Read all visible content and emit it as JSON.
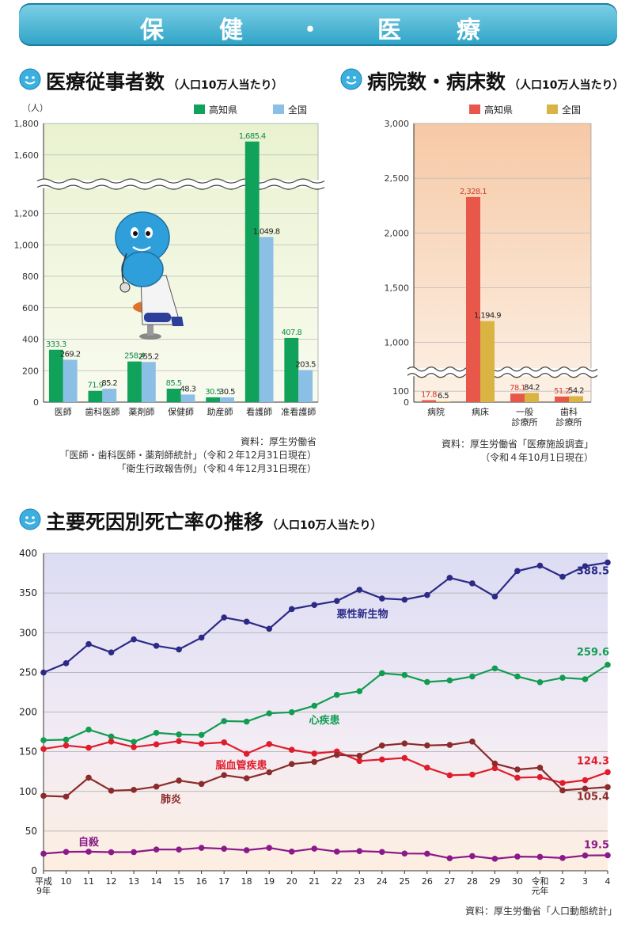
{
  "banner": {
    "title": "保　健　・　医　療"
  },
  "sections": {
    "staff": {
      "title": "医療従事者数",
      "unit": "（人口10万人当たり）"
    },
    "hospitals": {
      "title": "病院数・病床数",
      "unit": "（人口10万人当たり）"
    },
    "death": {
      "title": "主要死因別死亡率の推移",
      "unit": "（人口10万人当たり）"
    }
  },
  "sources": {
    "staff": [
      "資料：厚生労働省",
      "「医師・歯科医師・薬剤師統計」（令和２年12月31日現在）",
      "「衛生行政報告例」（令和４年12月31日現在）"
    ],
    "hospitals": [
      "資料：厚生労働省「医療施設調査」",
      "（令和４年10月1日現在）"
    ],
    "death": [
      "資料：厚生労働省「人口動態統計」"
    ]
  },
  "icons": {
    "section_marker": "smiley-face-icon",
    "mascot": "mascot-doctor-icon"
  },
  "chart_data": [
    {
      "type": "bar",
      "ylabel": "（人）",
      "categories": [
        "医師",
        "歯科医師",
        "薬剤師",
        "保健師",
        "助産師",
        "看護師",
        "准看護師"
      ],
      "series": [
        {
          "name": "高知県",
          "color": "#10a15a",
          "values": [
            333.3,
            71.9,
            258.4,
            85.5,
            30.5,
            1685.4,
            407.8
          ],
          "labels": [
            "333.3",
            "71.9",
            "258.4",
            "85.5",
            "30.5",
            "1,685.4",
            "407.8"
          ]
        },
        {
          "name": "全国",
          "color": "#8bbfe6",
          "values": [
            269.2,
            85.2,
            255.2,
            48.3,
            30.5,
            1049.8,
            203.5
          ],
          "labels": [
            "269.2",
            "85.2",
            "255.2",
            "48.3",
            "30.5",
            "1,049.8",
            "203.5"
          ]
        }
      ],
      "ylim": [
        0,
        1800
      ],
      "axis_break": [
        1300,
        1500
      ],
      "ticks": [
        0,
        200,
        400,
        600,
        800,
        1000,
        1200,
        1600,
        1800
      ],
      "tick_labels": [
        "0",
        "200",
        "400",
        "600",
        "800",
        "1,000",
        "1,200",
        "1,600",
        "1,800"
      ],
      "legend": "top-right",
      "grid": true
    },
    {
      "type": "bar",
      "categories": [
        "病院",
        "病床",
        "一般\n診療所",
        "歯科\n診療所"
      ],
      "series": [
        {
          "name": "高知県",
          "color": "#e8584a",
          "values": [
            17.8,
            2328.1,
            78.1,
            51.2
          ],
          "labels": [
            "17.8",
            "2,328.1",
            "78.1",
            "51.2"
          ]
        },
        {
          "name": "全国",
          "color": "#d9b443",
          "values": [
            6.5,
            1194.9,
            84.2,
            54.2
          ],
          "labels": [
            "6.5",
            "1,194.9",
            "84.2",
            "54.2"
          ]
        }
      ],
      "ylim": [
        0,
        3000
      ],
      "axis_break": [
        150,
        850
      ],
      "ticks": [
        0,
        100,
        1000,
        1500,
        2000,
        2500,
        3000
      ],
      "tick_labels": [
        "0",
        "100",
        "1,000",
        "1,500",
        "2,000",
        "2,500",
        "3,000"
      ],
      "legend": "top-right",
      "grid": true
    },
    {
      "type": "line",
      "x": [
        "平成\n9年",
        "10",
        "11",
        "12",
        "13",
        "14",
        "15",
        "16",
        "17",
        "18",
        "19",
        "20",
        "21",
        "22",
        "23",
        "24",
        "25",
        "26",
        "27",
        "28",
        "29",
        "30",
        "令和\n元年",
        "2",
        "3",
        "4"
      ],
      "ylim": [
        0,
        400
      ],
      "ticks": [
        0,
        50,
        100,
        150,
        200,
        250,
        300,
        350,
        400
      ],
      "grid": true,
      "series": [
        {
          "name": "悪性新生物",
          "color": "#2b2a86",
          "end_label": "388.5",
          "values": [
            249.8,
            261.5,
            285.6,
            275.1,
            291.6,
            283.5,
            278.9,
            293.8,
            319.2,
            313.9,
            304.9,
            329.8,
            335.0,
            340.0,
            354.1,
            343.1,
            341.6,
            347.4,
            369.2,
            362.2,
            345.5,
            377.7,
            384.5,
            370.5,
            383.8,
            388.5
          ]
        },
        {
          "name": "心疾患",
          "color": "#119d51",
          "end_label": "259.6",
          "values": [
            164.5,
            165.2,
            177.9,
            169.1,
            162.4,
            173.8,
            171.8,
            171.2,
            188.6,
            188.0,
            198.3,
            199.8,
            207.9,
            221.6,
            226.2,
            248.9,
            246.6,
            237.9,
            239.8,
            244.8,
            255.0,
            244.8,
            237.6,
            243.2,
            241.4,
            259.6
          ]
        },
        {
          "name": "脳血管疾患",
          "color": "#e01c2c",
          "end_label": "124.3",
          "values": [
            153.5,
            157.9,
            155.0,
            162.8,
            155.8,
            159.3,
            163.4,
            160.0,
            161.8,
            147.5,
            159.7,
            152.4,
            147.7,
            150.3,
            138.4,
            140.2,
            142.1,
            129.9,
            120.3,
            121.2,
            129.3,
            117.3,
            118.0,
            110.6,
            114.2,
            124.3
          ]
        },
        {
          "name": "肺炎",
          "color": "#8b2b2b",
          "end_label": "105.4",
          "values": [
            94.4,
            93.4,
            117.3,
            100.9,
            101.9,
            106.0,
            113.7,
            109.4,
            120.5,
            116.5,
            124.1,
            134.5,
            137.2,
            146.0,
            144.8,
            157.8,
            160.4,
            157.9,
            158.6,
            162.8,
            135.1,
            127.6,
            129.9,
            101.3,
            103.4,
            105.4
          ]
        },
        {
          "name": "自殺",
          "color": "#8a1a8a",
          "end_label": "19.5",
          "values": [
            21.5,
            23.8,
            24.0,
            23.4,
            23.5,
            26.8,
            26.7,
            28.9,
            27.7,
            25.9,
            28.9,
            24.1,
            27.9,
            24.1,
            24.8,
            23.7,
            21.7,
            21.5,
            15.8,
            18.5,
            15.1,
            17.9,
            17.5,
            16.1,
            19.3,
            19.5
          ]
        }
      ]
    }
  ]
}
